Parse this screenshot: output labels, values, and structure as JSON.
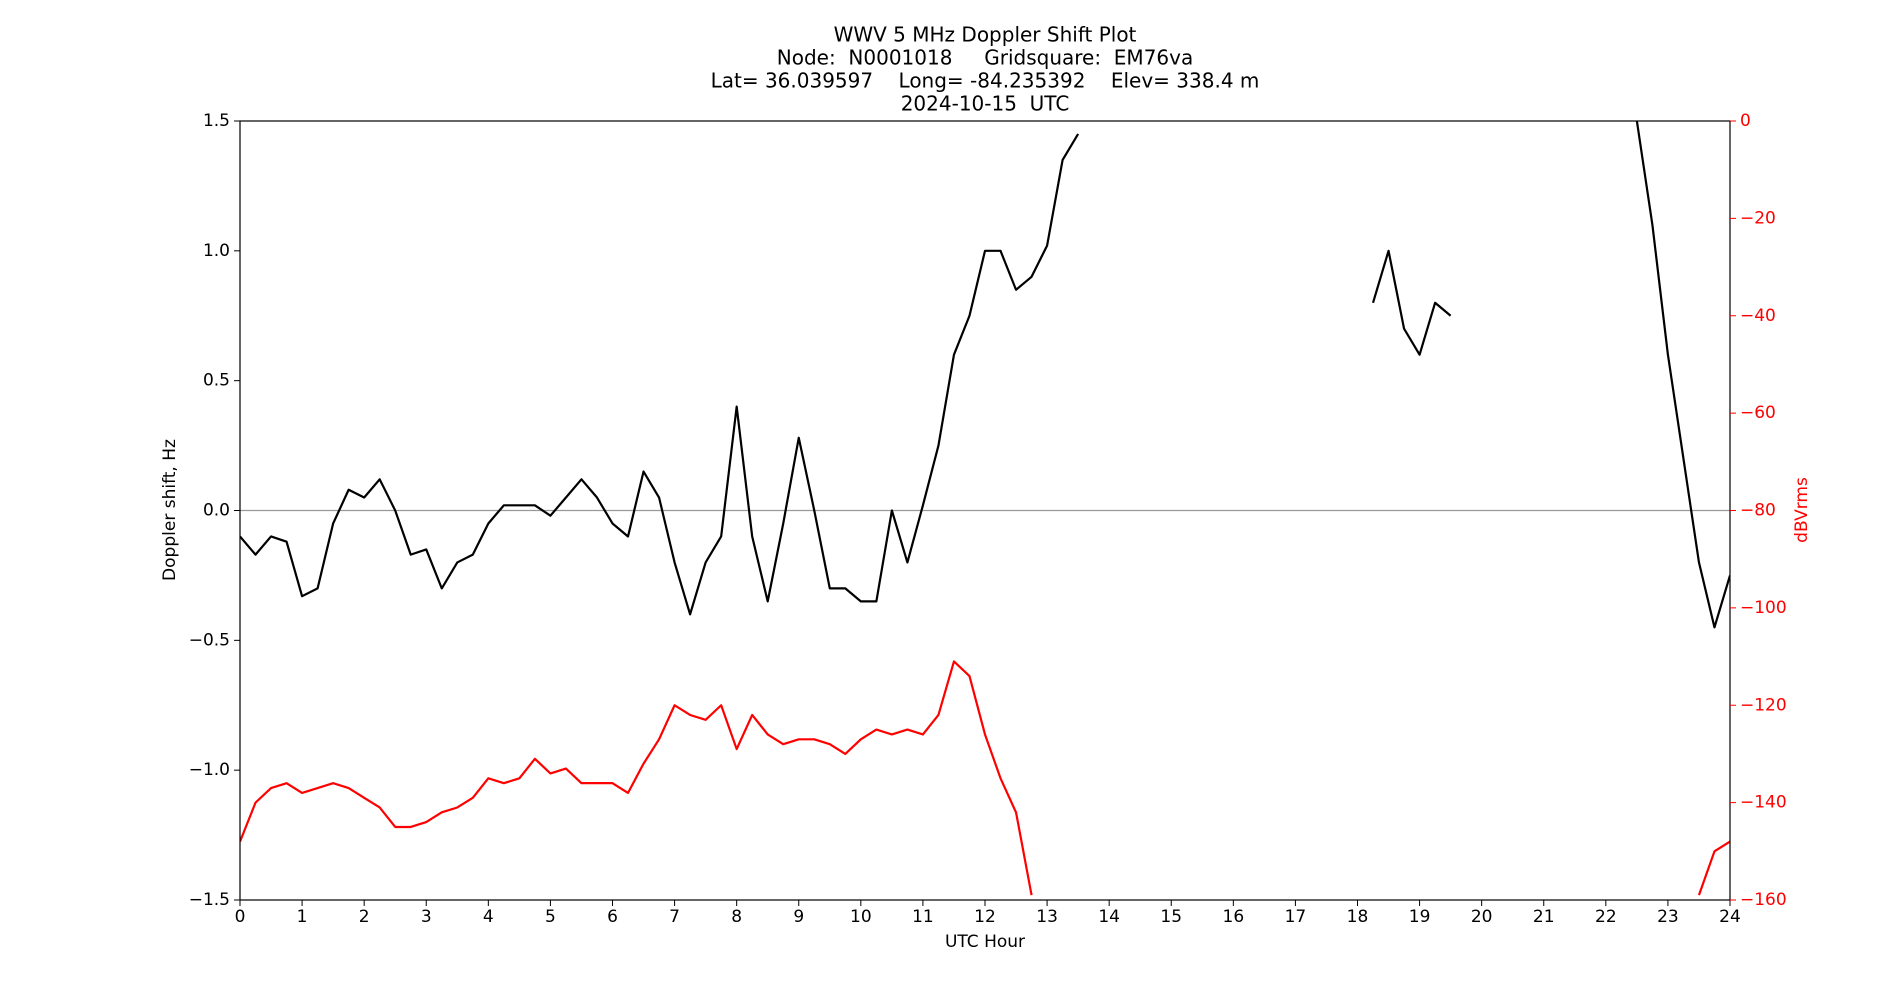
{
  "chart_data": {
    "type": "line",
    "title": [
      "WWV 5 MHz Doppler Shift Plot",
      "Node:  N0001018     Gridsquare:  EM76va",
      "Lat= 36.039597    Long= -84.235392    Elev= 338.4 m",
      "2024-10-15  UTC"
    ],
    "xlabel": "UTC Hour",
    "ylabel": "Doppler shift, Hz",
    "y2label": "dBVrms",
    "y2color": "#ff0000",
    "x": [
      0,
      0.25,
      0.5,
      0.75,
      1,
      1.25,
      1.5,
      1.75,
      2,
      2.25,
      2.5,
      2.75,
      3,
      3.25,
      3.5,
      3.75,
      4,
      4.25,
      4.5,
      4.75,
      5,
      5.25,
      5.5,
      5.75,
      6,
      6.25,
      6.5,
      6.75,
      7,
      7.25,
      7.5,
      7.75,
      8,
      8.25,
      8.5,
      8.75,
      9,
      9.25,
      9.5,
      9.75,
      10,
      10.25,
      10.5,
      10.75,
      11,
      11.25,
      11.5,
      11.75,
      12,
      12.25,
      12.5,
      12.75,
      13,
      13.25,
      13.5,
      13.75,
      14,
      14.25,
      14.5,
      14.75,
      15,
      15.25,
      15.5,
      15.75,
      16,
      16.25,
      16.5,
      16.75,
      17,
      17.25,
      17.5,
      17.75,
      18,
      18.25,
      18.5,
      18.75,
      19,
      19.25,
      19.5,
      19.75,
      20,
      20.25,
      20.5,
      20.75,
      21,
      21.25,
      21.5,
      21.75,
      22,
      22.25,
      22.5,
      22.75,
      23,
      23.25,
      23.5,
      23.75,
      24
    ],
    "series": [
      {
        "color": "#000000",
        "values": [
          -0.1,
          -0.17,
          -0.1,
          -0.12,
          -0.33,
          -0.3,
          -0.05,
          0.08,
          0.05,
          0.12,
          0.0,
          -0.17,
          -0.15,
          -0.3,
          -0.2,
          -0.17,
          -0.05,
          0.02,
          0.02,
          0.02,
          -0.02,
          0.05,
          0.12,
          0.05,
          -0.05,
          -0.1,
          0.15,
          0.05,
          -0.2,
          -0.4,
          -0.2,
          -0.1,
          0.4,
          -0.1,
          -0.35,
          -0.05,
          0.28,
          0.0,
          -0.3,
          -0.3,
          -0.35,
          -0.35,
          0.0,
          -0.2,
          0.02,
          0.25,
          0.6,
          0.75,
          1.0,
          1.0,
          0.85,
          0.9,
          1.02,
          1.35,
          1.45,
          null,
          null,
          null,
          null,
          null,
          null,
          null,
          null,
          null,
          null,
          null,
          null,
          null,
          null,
          null,
          null,
          null,
          null,
          0.8,
          1.0,
          0.7,
          0.6,
          0.8,
          0.75,
          null,
          null,
          null,
          null,
          null,
          null,
          null,
          null,
          null,
          null,
          null,
          1.5,
          1.1,
          0.6,
          0.2,
          -0.2,
          -0.45,
          -0.25
        ]
      },
      {
        "color": "#ff0000",
        "axis": "y2",
        "values": [
          -148,
          -140,
          -137,
          -136,
          -138,
          -137,
          -136,
          -137,
          -139,
          -141,
          -145,
          -145,
          -144,
          -142,
          -141,
          -139,
          -135,
          -136,
          -135,
          -131,
          -134,
          -133,
          -136,
          -136,
          -136,
          -138,
          -132,
          -127,
          -120,
          -122,
          -123,
          -120,
          -129,
          -122,
          -126,
          -128,
          -127,
          -127,
          -128,
          -130,
          -127,
          -125,
          -126,
          -125,
          -126,
          -122,
          -111,
          -114,
          -126,
          -135,
          -142,
          -159,
          null,
          null,
          null,
          null,
          null,
          null,
          null,
          null,
          null,
          null,
          null,
          null,
          null,
          null,
          null,
          null,
          null,
          null,
          null,
          null,
          null,
          null,
          null,
          null,
          null,
          null,
          null,
          null,
          null,
          null,
          null,
          null,
          null,
          null,
          null,
          null,
          null,
          null,
          null,
          null,
          null,
          null,
          -159,
          -150,
          -148
        ]
      }
    ],
    "xlim": [
      0,
      24
    ],
    "xticks": [
      0,
      1,
      2,
      3,
      4,
      5,
      6,
      7,
      8,
      9,
      10,
      11,
      12,
      13,
      14,
      15,
      16,
      17,
      18,
      19,
      20,
      21,
      22,
      23,
      24
    ],
    "ylim": [
      -1.5,
      1.5
    ],
    "yticks": [
      {
        "value": -1.5,
        "label": "−1.5"
      },
      {
        "value": -1.0,
        "label": "−1.0"
      },
      {
        "value": -0.5,
        "label": "−0.5"
      },
      {
        "value": 0,
        "label": "0.0"
      },
      0.5,
      {
        "value": 1.0,
        "label": "1.0"
      },
      1.5
    ],
    "y2lim": [
      -160,
      0
    ],
    "y2ticks": [
      {
        "value": -160,
        "label": "−160"
      },
      {
        "value": -140,
        "label": "−140"
      },
      {
        "value": -120,
        "label": "−120"
      },
      {
        "value": -100,
        "label": "−100"
      },
      {
        "value": -80,
        "label": "−80"
      },
      {
        "value": -60,
        "label": "−60"
      },
      {
        "value": -40,
        "label": "−40"
      },
      {
        "value": -20,
        "label": "−20"
      },
      0
    ],
    "hline": 0,
    "hline_color": "#999999"
  }
}
